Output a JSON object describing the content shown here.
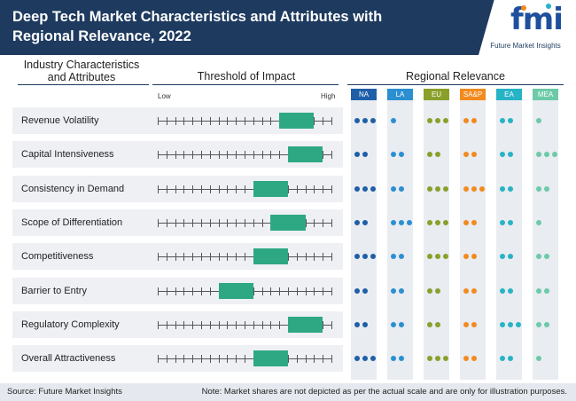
{
  "header": {
    "title": "Deep Tech Market Characteristics and Attributes with Regional Relevance, 2022",
    "logo_letters": "fmi",
    "logo_text": "Future Market Insights"
  },
  "columns": {
    "industry": "Industry Characteristics and Attributes",
    "threshold": "Threshold of Impact",
    "regional": "Regional Relevance"
  },
  "scale": {
    "low": "Low",
    "high": "High"
  },
  "footer": {
    "source": "Source: Future Market Insights",
    "note": "Note: Market shares are not depicted as per the actual scale and are only for illustration purposes."
  },
  "colors": {
    "header": "#1e3a5f",
    "bar": "#2ea883",
    "NA": "#1f5fa8",
    "LA": "#2b8fd0",
    "EU": "#8aa02a",
    "SA&P": "#f28a1e",
    "EA": "#27b3c6",
    "MEA": "#6ccaa8"
  },
  "chart_data": {
    "type": "table",
    "scale_ticks": 21,
    "regions": [
      "NA",
      "LA",
      "EU",
      "SA&P",
      "EA",
      "MEA"
    ],
    "rows": [
      {
        "label": "Revenue Volatility",
        "impact_range": [
          15,
          19
        ],
        "regional": [
          3,
          1,
          3,
          2,
          2,
          1
        ]
      },
      {
        "label": "Capital Intensiveness",
        "impact_range": [
          16,
          20
        ],
        "regional": [
          2,
          2,
          2,
          2,
          2,
          3
        ]
      },
      {
        "label": "Consistency in Demand",
        "impact_range": [
          12,
          16
        ],
        "regional": [
          3,
          2,
          3,
          3,
          2,
          2
        ]
      },
      {
        "label": "Scope of Differentiation",
        "impact_range": [
          14,
          18
        ],
        "regional": [
          2,
          3,
          3,
          2,
          2,
          1
        ]
      },
      {
        "label": "Competitiveness",
        "impact_range": [
          12,
          16
        ],
        "regional": [
          3,
          2,
          3,
          2,
          2,
          2
        ]
      },
      {
        "label": "Barrier to Entry",
        "impact_range": [
          8,
          12
        ],
        "regional": [
          2,
          2,
          2,
          2,
          2,
          2
        ]
      },
      {
        "label": "Regulatory Complexity",
        "impact_range": [
          16,
          20
        ],
        "regional": [
          2,
          2,
          2,
          2,
          3,
          2
        ]
      },
      {
        "label": "Overall Attractiveness",
        "impact_range": [
          12,
          16
        ],
        "regional": [
          3,
          2,
          3,
          2,
          2,
          1
        ]
      }
    ]
  }
}
